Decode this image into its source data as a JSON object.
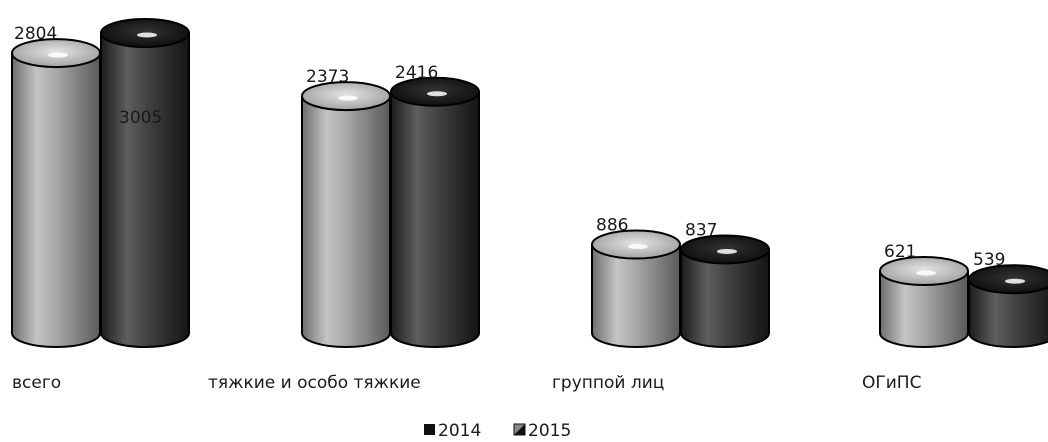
{
  "chart_data": {
    "type": "bar",
    "style": "3d-cylinder",
    "categories": [
      "всего",
      "тяжкие и особо тяжкие",
      "группой лиц",
      "ОГиПС"
    ],
    "series": [
      {
        "name": "2014",
        "values": [
          2804,
          2373,
          886,
          621
        ],
        "color": "#9a9a9a"
      },
      {
        "name": "2015",
        "values": [
          3005,
          2416,
          837,
          539
        ],
        "color": "#3c3c3c"
      }
    ],
    "legend": "bottom-center",
    "grid": false,
    "ylim": [
      0,
      3005
    ]
  }
}
